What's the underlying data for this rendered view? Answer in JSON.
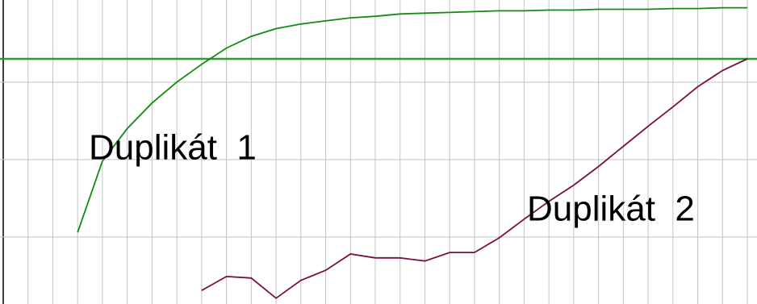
{
  "chart_data": {
    "type": "line",
    "annotations": [
      "Duplikát  1",
      "Duplikát  2"
    ],
    "series": [
      {
        "name": "Duplikát 1",
        "color": "#138a13",
        "x": [
          3,
          4,
          5,
          6,
          7,
          8,
          9,
          10,
          11,
          12,
          13,
          14,
          15,
          16,
          17,
          18,
          19,
          20,
          21,
          22,
          23,
          24,
          25,
          26,
          27,
          28,
          29,
          30
        ],
        "values": [
          1.06,
          1.98,
          2.4,
          2.73,
          3.0,
          3.23,
          3.44,
          3.59,
          3.69,
          3.75,
          3.79,
          3.83,
          3.85,
          3.88,
          3.89,
          3.9,
          3.91,
          3.92,
          3.92,
          3.93,
          3.93,
          3.94,
          3.94,
          3.94,
          3.95,
          3.95,
          3.96,
          3.96
        ]
      },
      {
        "name": "Duplikát 2",
        "color": "#7a0f45",
        "x": [
          8,
          9,
          10,
          11,
          12,
          13,
          14,
          15,
          16,
          17,
          18,
          19,
          20,
          21,
          22,
          23,
          24,
          25,
          26,
          27,
          28,
          29,
          30
        ],
        "values": [
          0.31,
          0.49,
          0.47,
          0.21,
          0.44,
          0.57,
          0.78,
          0.73,
          0.73,
          0.69,
          0.8,
          0.8,
          0.99,
          1.23,
          1.46,
          1.67,
          1.91,
          2.17,
          2.43,
          2.68,
          2.94,
          3.15,
          3.3
        ]
      }
    ],
    "threshold": 3.3,
    "threshold_color": "#2f9a2f",
    "xlim": [
      -0.13,
      30.39
    ],
    "ylim": [
      0.135,
      4.06
    ],
    "xticks": [
      1,
      2,
      3,
      4,
      5,
      6,
      7,
      8,
      9,
      10,
      11,
      12,
      13,
      14,
      15,
      16,
      17,
      18,
      19,
      20,
      21,
      22,
      23,
      24,
      25,
      26,
      27,
      28,
      29,
      30
    ],
    "yticks": [
      1,
      2,
      3
    ],
    "grid": true
  }
}
